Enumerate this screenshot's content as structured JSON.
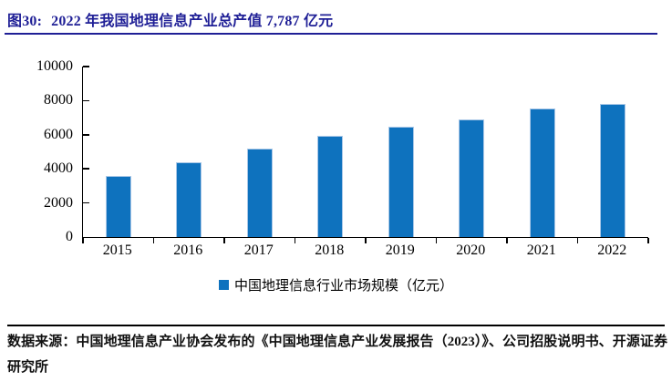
{
  "figure_header": {
    "label": "图30:",
    "title": "2022 年我国地理信息产业总产值 7,787 亿元",
    "accent_color": "#1F1F96"
  },
  "chart_data": {
    "type": "bar",
    "categories": [
      "2015",
      "2016",
      "2017",
      "2018",
      "2019",
      "2020",
      "2021",
      "2022"
    ],
    "values": [
      3600,
      4360,
      5180,
      5957,
      6476,
      6890,
      7524,
      7787
    ],
    "series_name": "中国地理信息行业市场规模（亿元）",
    "unit": "亿元",
    "ylim": [
      0,
      10000
    ],
    "yticks": [
      0,
      2000,
      4000,
      6000,
      8000,
      10000
    ],
    "grid": false,
    "legend_position": "bottom-center",
    "bar_color": "#0E72BE",
    "bar_border_color": "#A9C7E7",
    "axis_color": "#000000"
  },
  "legend": {
    "label": "中国地理信息行业市场规模（亿元）",
    "marker_color": "#0E72BE"
  },
  "footer": {
    "source_text": "数据来源：中国地理信息产业协会发布的《中国地理信息产业发展报告（2023）》、公司招股说明书、开源证券研究所"
  }
}
